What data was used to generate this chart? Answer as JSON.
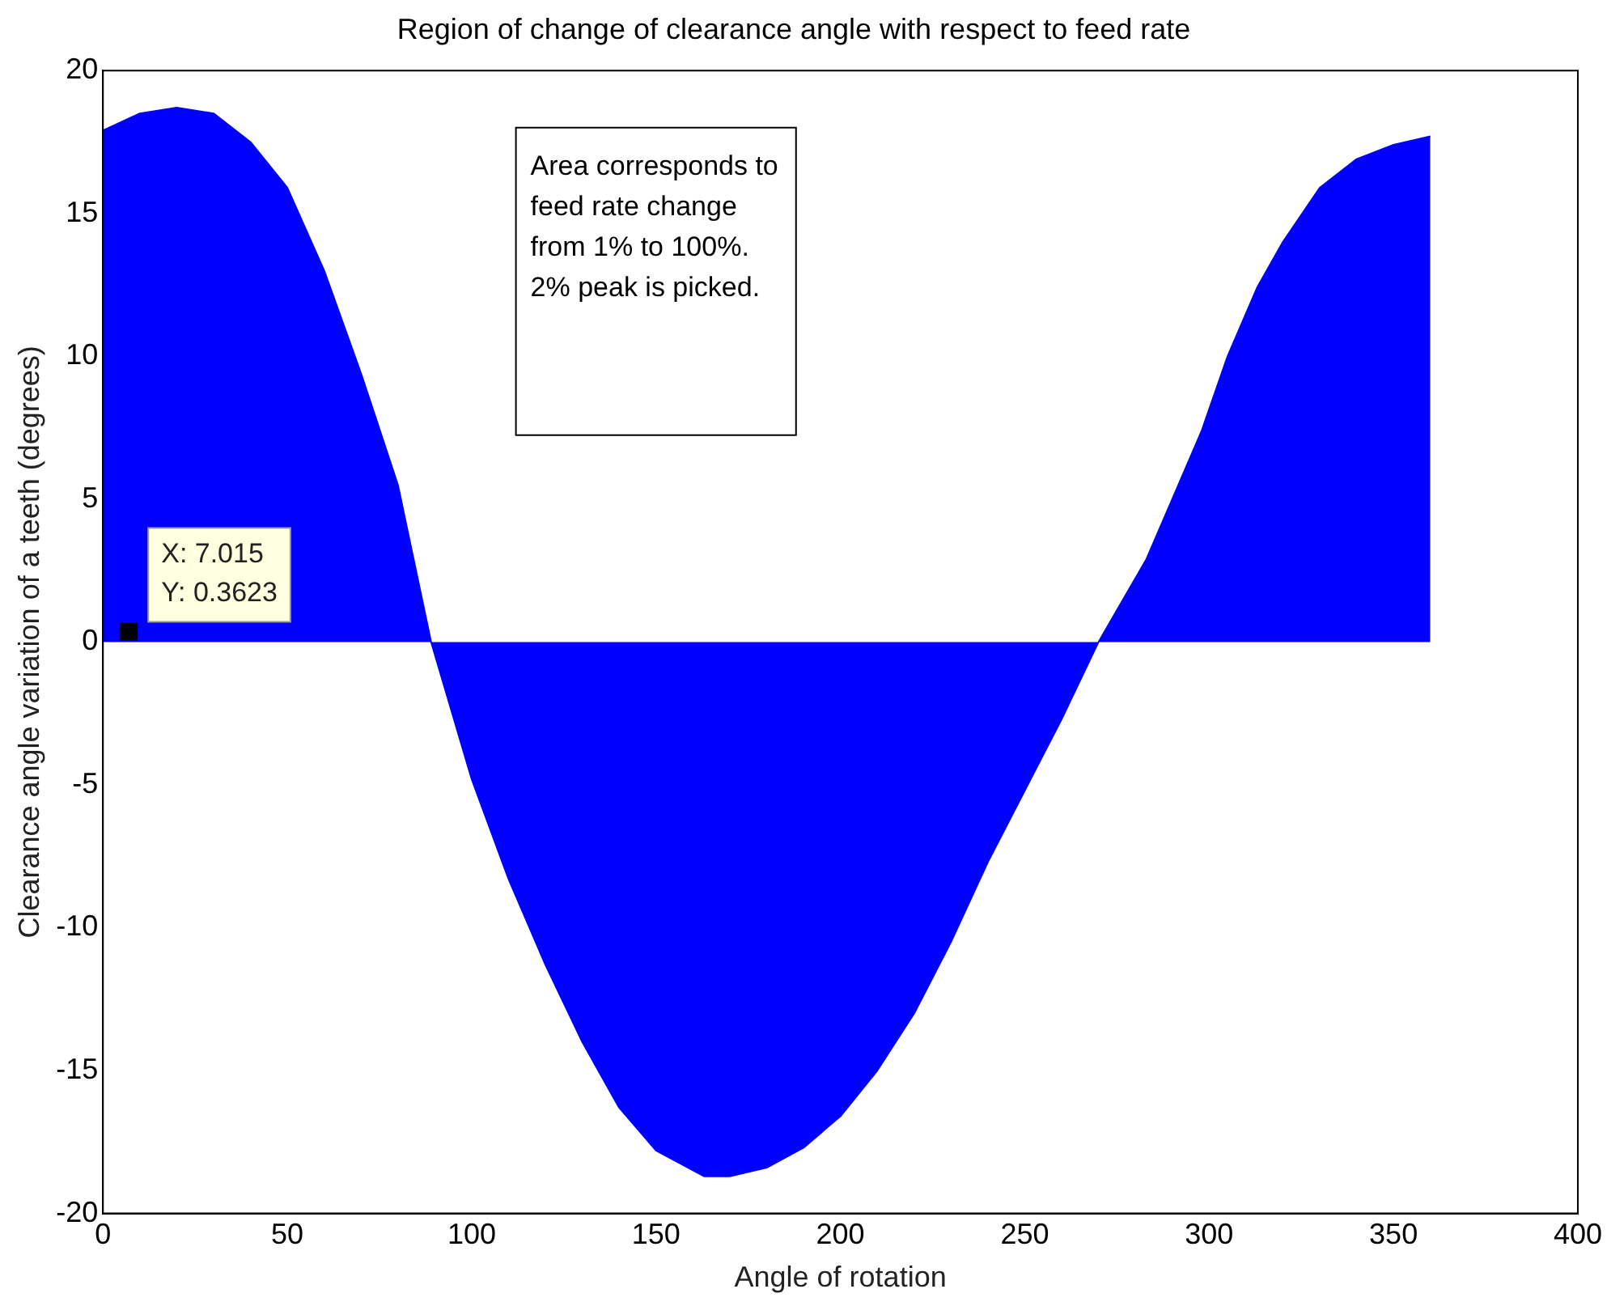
{
  "chart_data": {
    "type": "area",
    "title": "Region of change of clearance angle with respect to feed rate",
    "xlabel": "Angle of rotation",
    "ylabel": "Clearance angle variation of a teeth (degrees)",
    "xlim": [
      0,
      400
    ],
    "xticks": [
      0,
      50,
      100,
      150,
      200,
      250,
      300,
      350,
      400
    ],
    "ylim": [
      -20,
      20
    ],
    "yticks": [
      -20,
      -15,
      -10,
      -5,
      0,
      5,
      10,
      15,
      20
    ],
    "grid": false,
    "legend": false,
    "series": [
      {
        "color": "#0000ff",
        "x": [
          0,
          10,
          20,
          30,
          40,
          50,
          60,
          70,
          80,
          89,
          100,
          110,
          120,
          130,
          140,
          150,
          163,
          170,
          180,
          190,
          200,
          210,
          220,
          230,
          240,
          250,
          260,
          270,
          283,
          290,
          298,
          305,
          313,
          320,
          330,
          340,
          350,
          360
        ],
        "values": [
          17.9,
          18.5,
          18.7,
          18.5,
          17.5,
          15.9,
          13.0,
          9.4,
          5.5,
          0,
          -4.8,
          -8.3,
          -11.3,
          -14.0,
          -16.3,
          -17.8,
          -18.7,
          -18.7,
          -18.4,
          -17.7,
          -16.6,
          -15.0,
          -13.0,
          -10.5,
          -7.7,
          -5.2,
          -2.7,
          0,
          2.9,
          5.0,
          7.4,
          10.0,
          12.4,
          14.0,
          15.9,
          16.9,
          17.4,
          17.7
        ]
      },
      {
        "type": "scatter",
        "color": "#000000",
        "marker": "square",
        "x": [
          7.015
        ],
        "values": [
          0.3623
        ]
      }
    ],
    "annotations": [
      {
        "text": "X: 7.015\nY: 0.3623",
        "x": 7.015,
        "y": 0.3623
      },
      "Area corresponds to\nfeed rate change\nfrom 1% to 100%.\n2% peak is picked."
    ]
  }
}
